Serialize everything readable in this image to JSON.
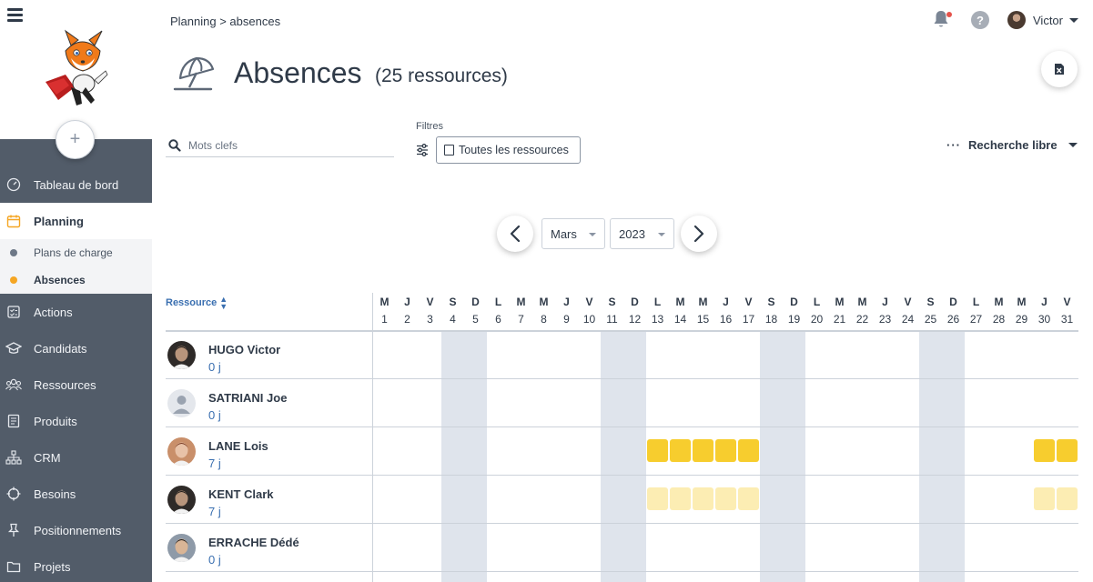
{
  "breadcrumb": "Planning > absences",
  "header": {
    "title": "Absences",
    "subtitle": "(25 ressources)",
    "user_name": "Victor"
  },
  "sidebar": {
    "items": [
      {
        "label": "Tableau de bord",
        "icon": "gauge-icon",
        "name": "tableau-de-bord"
      },
      {
        "label": "Planning",
        "icon": "calendar-icon",
        "name": "planning",
        "active": true
      },
      {
        "label": "Actions",
        "icon": "checklist-icon",
        "name": "actions"
      },
      {
        "label": "Candidats",
        "icon": "graduation-cap-icon",
        "name": "candidats"
      },
      {
        "label": "Ressources",
        "icon": "people-icon",
        "name": "ressources"
      },
      {
        "label": "Produits",
        "icon": "book-icon",
        "name": "produits"
      },
      {
        "label": "CRM",
        "icon": "org-chart-icon",
        "name": "crm"
      },
      {
        "label": "Besoins",
        "icon": "crosshair-icon",
        "name": "besoins"
      },
      {
        "label": "Positionnements",
        "icon": "pin-icon",
        "name": "positionnements"
      },
      {
        "label": "Projets",
        "icon": "folder-icon",
        "name": "projets"
      }
    ],
    "planning_sub": [
      {
        "label": "Plans de charge",
        "active": false
      },
      {
        "label": "Absences",
        "active": true
      }
    ]
  },
  "filters": {
    "search_placeholder": "Mots clefs",
    "filtres_label": "Filtres",
    "resources_button": "Toutes les ressources",
    "recherche_libre": "Recherche libre"
  },
  "period": {
    "month": "Mars",
    "year": "2023"
  },
  "grid": {
    "resource_header": "Ressource",
    "days": [
      {
        "l": "M",
        "d": "1"
      },
      {
        "l": "J",
        "d": "2"
      },
      {
        "l": "V",
        "d": "3"
      },
      {
        "l": "S",
        "d": "4"
      },
      {
        "l": "D",
        "d": "5"
      },
      {
        "l": "L",
        "d": "6"
      },
      {
        "l": "M",
        "d": "7"
      },
      {
        "l": "M",
        "d": "8"
      },
      {
        "l": "J",
        "d": "9"
      },
      {
        "l": "V",
        "d": "10"
      },
      {
        "l": "S",
        "d": "11"
      },
      {
        "l": "D",
        "d": "12"
      },
      {
        "l": "L",
        "d": "13"
      },
      {
        "l": "M",
        "d": "14"
      },
      {
        "l": "M",
        "d": "15"
      },
      {
        "l": "J",
        "d": "16"
      },
      {
        "l": "V",
        "d": "17"
      },
      {
        "l": "S",
        "d": "18"
      },
      {
        "l": "D",
        "d": "19"
      },
      {
        "l": "L",
        "d": "20"
      },
      {
        "l": "M",
        "d": "21"
      },
      {
        "l": "M",
        "d": "22"
      },
      {
        "l": "J",
        "d": "23"
      },
      {
        "l": "V",
        "d": "24"
      },
      {
        "l": "S",
        "d": "25"
      },
      {
        "l": "D",
        "d": "26"
      },
      {
        "l": "L",
        "d": "27"
      },
      {
        "l": "M",
        "d": "28"
      },
      {
        "l": "M",
        "d": "29"
      },
      {
        "l": "J",
        "d": "30"
      },
      {
        "l": "V",
        "d": "31"
      }
    ],
    "weekend_days": [
      4,
      5,
      11,
      12,
      18,
      19,
      25,
      26
    ],
    "rows": [
      {
        "name": "HUGO Victor",
        "days": "0 j",
        "avatar": "photo-dark",
        "absences": [],
        "pending": []
      },
      {
        "name": "SATRIANI Joe",
        "days": "0 j",
        "avatar": "placeholder",
        "absences": [],
        "pending": []
      },
      {
        "name": "LANE Lois",
        "days": "7 j",
        "avatar": "photo-light",
        "absences": [
          13,
          14,
          15,
          16,
          17,
          30,
          31
        ],
        "pending": []
      },
      {
        "name": "KENT Clark",
        "days": "7 j",
        "avatar": "photo-dark",
        "absences": [],
        "pending": [
          13,
          14,
          15,
          16,
          17,
          30,
          31
        ]
      },
      {
        "name": "ERRACHE Dédé",
        "days": "0 j",
        "avatar": "photo-mid",
        "absences": [],
        "pending": []
      }
    ]
  },
  "colors": {
    "sidebar_bg": "#525c69",
    "absence": "#f7cd2e",
    "absence_pending": "#fcedb3",
    "weekend": "#dfe4ec",
    "link_blue": "#3a6fb0",
    "active_dot": "#f5a623"
  }
}
